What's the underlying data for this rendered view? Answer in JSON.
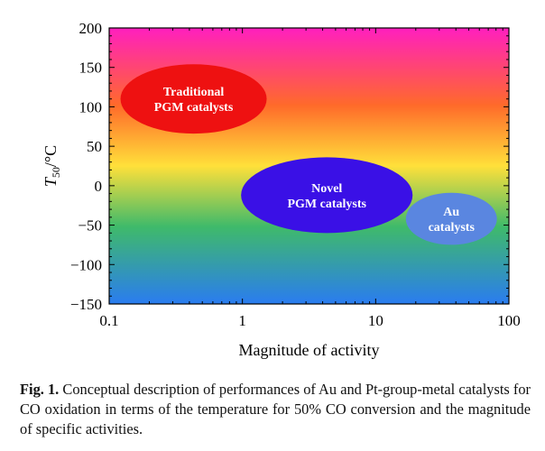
{
  "chart_data": {
    "type": "diagram-scatter",
    "xlabel": "Magnitude of activity",
    "ylabel_main": "T",
    "ylabel_sub": "50",
    "ylabel_unit": "/°C",
    "x_scale": "log",
    "xlim": [
      0.1,
      100
    ],
    "ylim": [
      -150,
      200
    ],
    "x_ticks": [
      {
        "value": 0.1,
        "label": "0.1"
      },
      {
        "value": 1,
        "label": "1"
      },
      {
        "value": 10,
        "label": "10"
      },
      {
        "value": 100,
        "label": "100"
      }
    ],
    "y_ticks": [
      {
        "value": 200,
        "label": "200"
      },
      {
        "value": 150,
        "label": "150"
      },
      {
        "value": 100,
        "label": "100"
      },
      {
        "value": 50,
        "label": "50"
      },
      {
        "value": 0,
        "label": "0"
      },
      {
        "value": -50,
        "label": "−50"
      },
      {
        "value": -100,
        "label": "−100"
      },
      {
        "value": -150,
        "label": "−150"
      }
    ],
    "background_gradient": [
      "#ff1fbf",
      "#ff6a2a",
      "#ffe03a",
      "#3fba6a",
      "#2a7cf0"
    ],
    "regions": [
      {
        "lines": [
          "Traditional",
          "PGM catalysts"
        ],
        "x_center": 0.43,
        "x_range": [
          0.12,
          1.5
        ],
        "y_center": 110,
        "y_half": 44,
        "color": "#ee1111"
      },
      {
        "lines": [
          "Novel",
          "PGM catalysts"
        ],
        "x_center": 4.3,
        "x_range": [
          0.98,
          19
        ],
        "y_center": -12,
        "y_half": 48,
        "color": "#3a10e6"
      },
      {
        "lines": [
          "Au",
          "catalysts"
        ],
        "x_center": 37,
        "x_range": [
          17,
          82
        ],
        "y_center": -42,
        "y_half": 33,
        "color": "#5a86e0"
      }
    ],
    "grid": false,
    "legend": "none"
  },
  "caption": {
    "label": "Fig. 1.",
    "text": "Conceptual description of performances of Au and Pt-group-metal catalysts for CO oxidation in terms of the temperature for 50% CO conversion and the magnitude of specific activities."
  }
}
